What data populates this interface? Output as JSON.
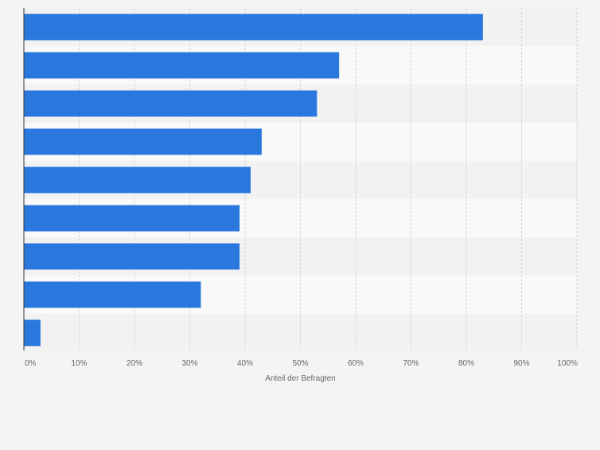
{
  "chart_data": {
    "type": "bar",
    "orientation": "horizontal",
    "title": "",
    "xlabel": "Anteil der Befragten",
    "ylabel": "",
    "xlim": [
      0,
      100
    ],
    "x_ticks": [
      "0%",
      "10%",
      "20%",
      "30%",
      "40%",
      "50%",
      "60%",
      "70%",
      "80%",
      "90%",
      "100%"
    ],
    "categories": [
      "",
      "",
      "",
      "",
      "",
      "",
      "",
      "",
      ""
    ],
    "values": [
      83,
      57,
      53,
      43,
      41,
      39,
      39,
      32,
      3
    ],
    "bar_color": "#2a77de",
    "grid": true
  }
}
